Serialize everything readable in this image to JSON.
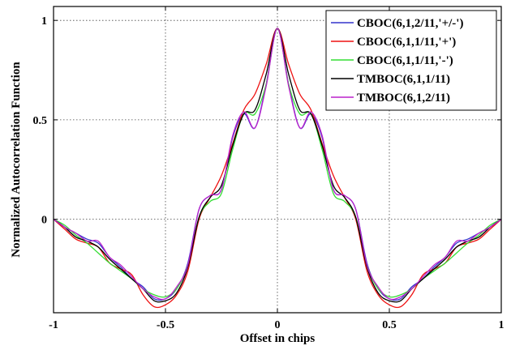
{
  "chart_data": {
    "type": "line",
    "xlabel": "Offset in chips",
    "ylabel": "Normalized Autocorrelation Function",
    "xlim": [
      -1,
      1
    ],
    "ylim": [
      -0.47,
      1.07
    ],
    "xticks": [
      -1,
      -0.5,
      0,
      0.5,
      1
    ],
    "xtick_labels": [
      "-1",
      "-0.5",
      "0",
      "0.5",
      "1"
    ],
    "yticks": [
      0,
      0.5,
      1
    ],
    "ytick_labels": [
      "0",
      "0.5",
      "1"
    ],
    "grid": true,
    "legend_position": "top-right",
    "x": [
      0,
      0.05,
      0.1,
      0.15,
      0.2,
      0.25,
      0.3,
      0.35,
      0.4,
      0.45,
      0.5,
      0.55,
      0.6,
      0.65,
      0.7,
      0.75,
      0.8,
      0.85,
      0.9,
      0.95,
      1.0
    ],
    "series": [
      {
        "name": "CBOC(6,1,2/11,'+/-')",
        "color": "#3333cc",
        "symmetric": true,
        "values": [
          0.96,
          0.68,
          0.46,
          0.53,
          0.41,
          0.15,
          0.12,
          0.05,
          -0.22,
          -0.35,
          -0.4,
          -0.4,
          -0.34,
          -0.3,
          -0.24,
          -0.19,
          -0.12,
          -0.1,
          -0.07,
          -0.04,
          0.0
        ]
      },
      {
        "name": "CBOC(6,1,1/11,'+')",
        "color": "#ee1111",
        "symmetric": true,
        "values": [
          0.96,
          0.78,
          0.63,
          0.55,
          0.38,
          0.22,
          0.11,
          0.0,
          -0.26,
          -0.38,
          -0.43,
          -0.44,
          -0.38,
          -0.28,
          -0.25,
          -0.22,
          -0.14,
          -0.12,
          -0.1,
          -0.05,
          0.0
        ]
      },
      {
        "name": "CBOC(6,1,1/11,'-')",
        "color": "#33dd33",
        "symmetric": true,
        "values": [
          0.96,
          0.68,
          0.53,
          0.53,
          0.35,
          0.13,
          0.09,
          0.01,
          -0.23,
          -0.35,
          -0.39,
          -0.38,
          -0.35,
          -0.3,
          -0.26,
          -0.22,
          -0.17,
          -0.12,
          -0.08,
          -0.03,
          0.0
        ]
      },
      {
        "name": "TMBOC(6,1,1/11)",
        "color": "#000000",
        "symmetric": true,
        "values": [
          0.96,
          0.73,
          0.55,
          0.53,
          0.37,
          0.17,
          0.11,
          0.01,
          -0.24,
          -0.37,
          -0.41,
          -0.41,
          -0.35,
          -0.3,
          -0.25,
          -0.2,
          -0.14,
          -0.11,
          -0.09,
          -0.04,
          0.0
        ]
      },
      {
        "name": "TMBOC(6,1,2/11)",
        "color": "#bb22cc",
        "symmetric": true,
        "values": [
          0.96,
          0.67,
          0.46,
          0.54,
          0.42,
          0.15,
          0.12,
          0.05,
          -0.23,
          -0.34,
          -0.4,
          -0.39,
          -0.35,
          -0.29,
          -0.23,
          -0.19,
          -0.11,
          -0.11,
          -0.07,
          -0.04,
          0.0
        ]
      }
    ]
  }
}
